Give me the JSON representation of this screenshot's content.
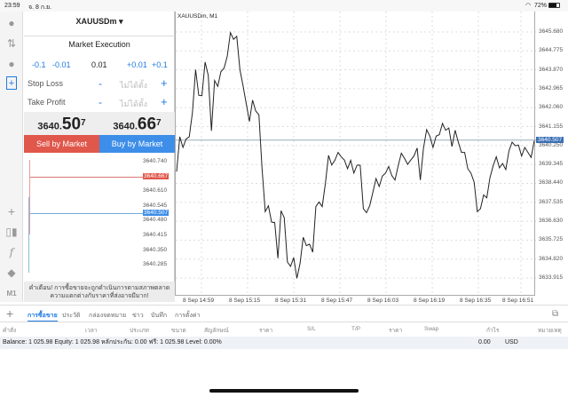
{
  "status_bar": {
    "time": "23:59",
    "date": "จ. 8 ก.ย.",
    "battery": "72%"
  },
  "left_toolbar": {
    "icons": [
      "account-icon",
      "trade-arrows-icon",
      "chat-icon",
      "new-order-icon",
      "crosshair-icon",
      "chart-type-icon",
      "indicators-icon",
      "objects-icon"
    ],
    "timeframe": "M1"
  },
  "order_panel": {
    "symbol": "XAUUSDm ▾",
    "execution": "Market Execution",
    "volume": {
      "minus_large": "-0.1",
      "minus_small": "-0.01",
      "value": "0.01",
      "plus_small": "+0.01",
      "plus_large": "+0.1"
    },
    "stop_loss": {
      "label": "Stop Loss",
      "minus": "-",
      "value": "ไม่ได้ตั้ง",
      "plus": "+"
    },
    "take_profit": {
      "label": "Take Profit",
      "minus": "-",
      "value": "ไม่ได้ตั้ง",
      "plus": "+"
    },
    "bid": {
      "prefix": "3640.",
      "big": "50",
      "sup": "7"
    },
    "ask": {
      "prefix": "3640.",
      "big": "66",
      "sup": "7"
    },
    "sell_label": "Sell by Market",
    "buy_label": "Buy by Market",
    "sell_color": "#e0574b",
    "buy_color": "#3d8ee8",
    "mini_chart": {
      "labels": [
        "3640.740",
        "3640.610",
        "3640.545",
        "3640.480",
        "3640.415",
        "3640.350",
        "3640.285"
      ],
      "ask_tag": "3640.667",
      "bid_tag": "3640.507"
    },
    "warning": "คำเตือน! การซื้อขายจะถูกดำเนินการตามสภาพตลาด ความแตกต่างกับราคาที่ส่งอาจมีมาก!"
  },
  "chart_data": {
    "type": "line",
    "title": "XAUUSDm, M1",
    "x_tick_labels": [
      "8 Sep 14:59",
      "8 Sep 15:15",
      "8 Sep 15:31",
      "8 Sep 15:47",
      "8 Sep 16:03",
      "8 Sep 16:19",
      "8 Sep 16:35",
      "8 Sep 16:51"
    ],
    "y_tick_labels": [
      "3645.680",
      "3644.775",
      "3643.870",
      "3642.965",
      "3642.060",
      "3641.155",
      "3640.250",
      "3639.345",
      "3638.440",
      "3637.535",
      "3636.630",
      "3635.725",
      "3634.820",
      "3633.915"
    ],
    "ylim": [
      3633.1,
      3646.2
    ],
    "current_price": "3640.507",
    "grid": true,
    "values": [
      3639.0,
      3640.67,
      3640.16,
      3640.56,
      3640.67,
      3641.83,
      3643.88,
      3642.65,
      3642.64,
      3644.24,
      3643.6,
      3640.95,
      3643.36,
      3643.08,
      3643.78,
      3643.95,
      3644.52,
      3645.65,
      3645.33,
      3645.47,
      3643.88,
      3643.1,
      3642.25,
      3641.4,
      3642.42,
      3641.9,
      3641.72,
      3639.14,
      3637.09,
      3637.37,
      3636.59,
      3636.56,
      3634.86,
      3637.13,
      3636.8,
      3634.68,
      3634.47,
      3634.89,
      3633.9,
      3634.61,
      3635.86,
      3635.46,
      3635.53,
      3635.15,
      3637.33,
      3637.55,
      3637.33,
      3638.43,
      3639.78,
      3639.32,
      3639.54,
      3639.92,
      3639.71,
      3639.56,
      3639.14,
      3639.54,
      3638.93,
      3639.31,
      3639.31,
      3637.23,
      3637.04,
      3637.37,
      3638.01,
      3638.67,
      3638.29,
      3638.79,
      3638.93,
      3639.25,
      3638.81,
      3638.6,
      3639.28,
      3639.88,
      3639.64,
      3639.35,
      3639.56,
      3639.75,
      3640.13,
      3638.6,
      3640.13,
      3641.01,
      3640.7,
      3640.16,
      3640.7,
      3640.77,
      3641.31,
      3640.98,
      3641.09,
      3640.2,
      3640.98,
      3640.41,
      3639.92,
      3639.92,
      3639.14,
      3638.93,
      3638.5,
      3637.09,
      3637.23,
      3637.89,
      3637.75,
      3638.71,
      3639.28,
      3639.71,
      3639.18,
      3639.39,
      3639.1,
      3639.99,
      3640.41,
      3640.24,
      3640.27,
      3639.75,
      3640.16,
      3639.92,
      3639.68,
      3640.48
    ]
  },
  "bottom_tabs": {
    "add": "+",
    "tabs": [
      "การซื้อขาย",
      "ประวัติ",
      "กล่องจดหมาย",
      "ข่าว",
      "บันทึก",
      "การตั้งค่า"
    ]
  },
  "columns": [
    "คำสั่ง",
    "เวลา",
    "ประเภท",
    "ขนาด",
    "สัญลักษณ์",
    "ราคา",
    "S/L",
    "T/P",
    "ราคา",
    "Swap",
    "กำไร",
    "หมายเหตุ"
  ],
  "balance": {
    "text": "Balance: 1 025.98 Equity: 1 025.98 หลักประกัน: 0.00 ฟรี: 1 025.98 Level: 0.00%",
    "profit": "0.00",
    "currency": "USD"
  }
}
